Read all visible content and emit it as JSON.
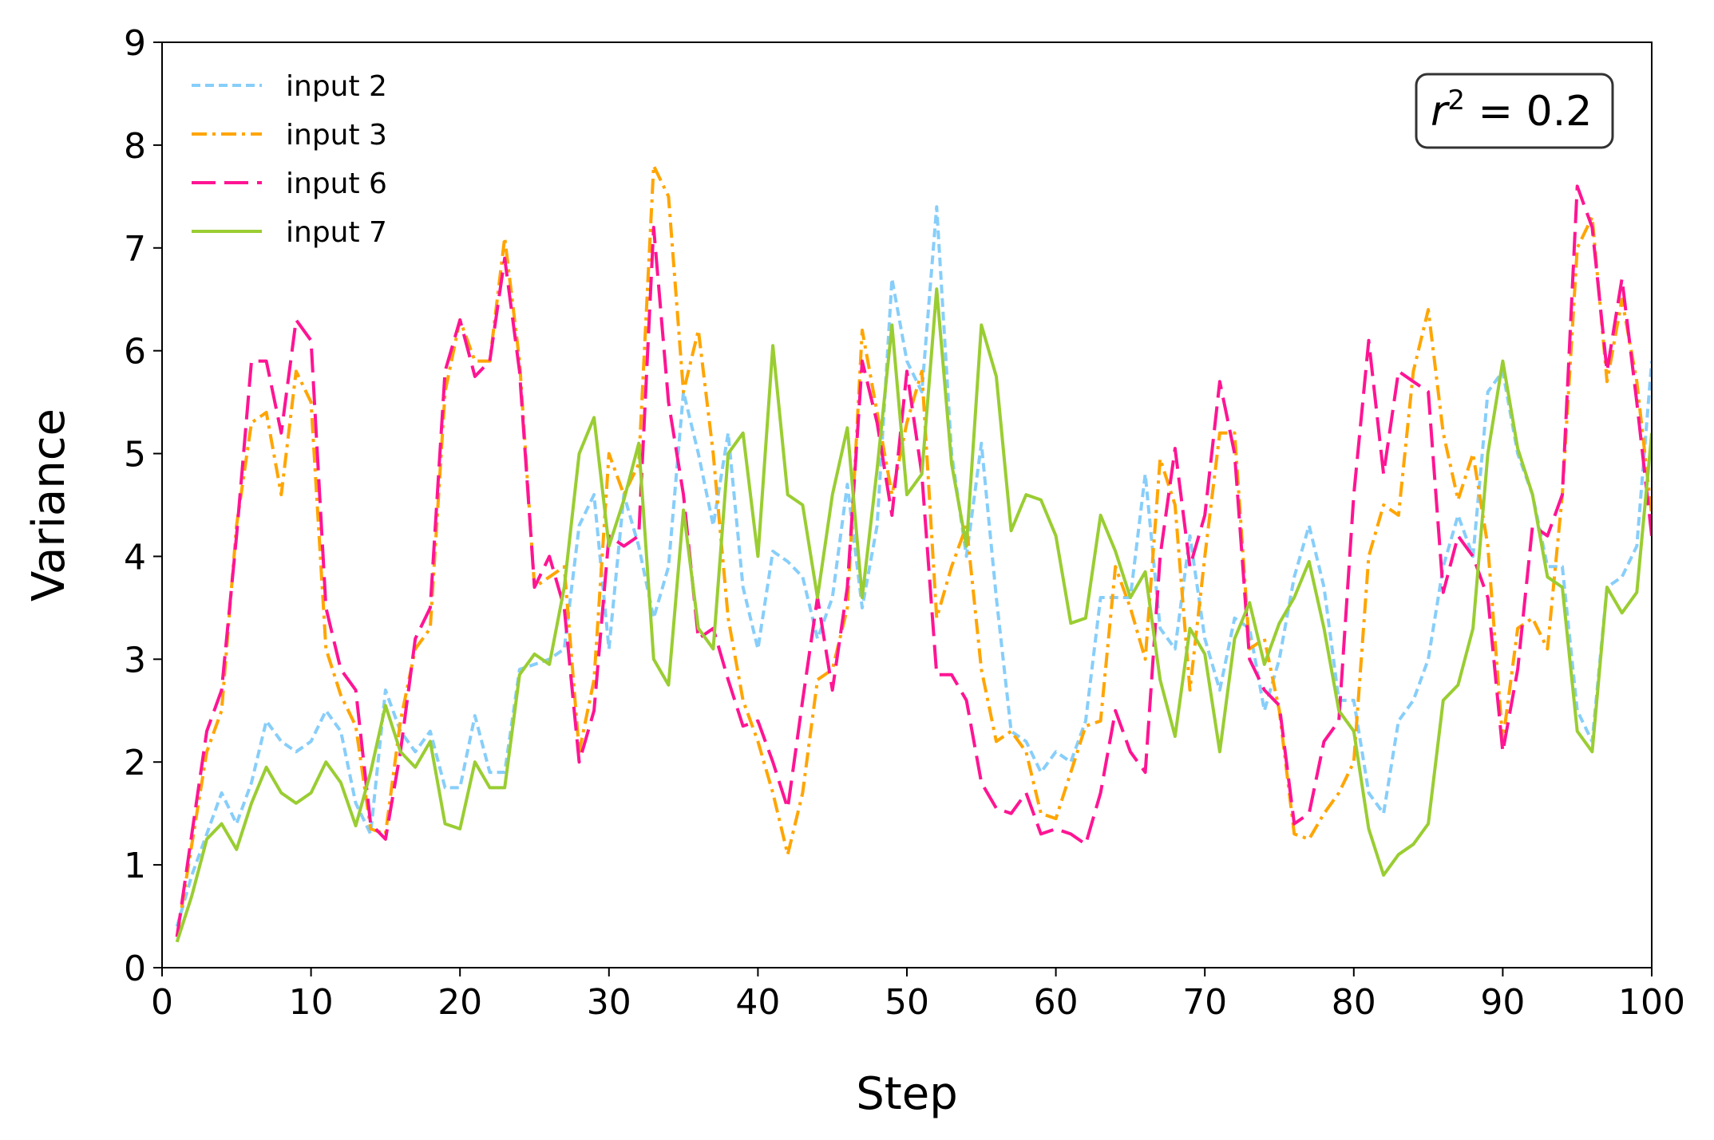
{
  "chart_data": {
    "type": "line",
    "title": "",
    "xlabel": "Step",
    "ylabel": "Variance",
    "xlim": [
      0,
      100
    ],
    "ylim": [
      0,
      9
    ],
    "xticks": [
      0,
      10,
      20,
      30,
      40,
      50,
      60,
      70,
      80,
      90,
      100
    ],
    "yticks": [
      0,
      1,
      2,
      3,
      4,
      5,
      6,
      7,
      8,
      9
    ],
    "legend_position": "top-left",
    "annotation": {
      "base": "r",
      "exponent": "2",
      "rest": " = 0.2",
      "position": "top-right"
    },
    "x": [
      1,
      2,
      3,
      4,
      5,
      6,
      7,
      8,
      9,
      10,
      11,
      12,
      13,
      14,
      15,
      16,
      17,
      18,
      19,
      20,
      21,
      22,
      23,
      24,
      25,
      26,
      27,
      28,
      29,
      30,
      31,
      32,
      33,
      34,
      35,
      36,
      37,
      38,
      39,
      40,
      41,
      42,
      43,
      44,
      45,
      46,
      47,
      48,
      49,
      50,
      51,
      52,
      53,
      54,
      55,
      56,
      57,
      58,
      59,
      60,
      61,
      62,
      63,
      64,
      65,
      66,
      67,
      68,
      69,
      70,
      71,
      72,
      73,
      74,
      75,
      76,
      77,
      78,
      79,
      80,
      81,
      82,
      83,
      84,
      85,
      86,
      87,
      88,
      89,
      90,
      91,
      92,
      93,
      94,
      95,
      96,
      97,
      98,
      99,
      100
    ],
    "series": [
      {
        "name": "input 2",
        "color": "#87CEFA",
        "dash": "short-dash",
        "values": [
          0.4,
          0.9,
          1.3,
          1.7,
          1.4,
          1.8,
          2.4,
          2.2,
          2.1,
          2.2,
          2.5,
          2.3,
          1.6,
          1.3,
          2.7,
          2.3,
          2.1,
          2.3,
          1.75,
          1.75,
          2.45,
          1.9,
          1.9,
          2.9,
          2.95,
          3.0,
          3.1,
          4.3,
          4.6,
          3.1,
          4.6,
          4.1,
          3.4,
          3.9,
          5.6,
          5.0,
          4.3,
          5.2,
          3.7,
          3.1,
          4.05,
          3.95,
          3.8,
          3.2,
          3.6,
          4.7,
          3.5,
          4.3,
          6.7,
          5.9,
          5.6,
          7.4,
          5.0,
          4.0,
          5.1,
          3.6,
          2.3,
          2.2,
          1.9,
          2.1,
          2.0,
          2.4,
          3.6,
          3.6,
          3.6,
          4.8,
          3.3,
          3.1,
          4.2,
          3.2,
          2.7,
          3.4,
          3.3,
          2.5,
          3.0,
          3.8,
          4.3,
          3.7,
          2.6,
          2.6,
          1.7,
          1.5,
          2.4,
          2.6,
          3.0,
          3.9,
          4.4,
          4.0,
          5.6,
          5.8,
          5.0,
          4.6,
          3.9,
          3.9,
          2.5,
          2.2,
          3.7,
          3.8,
          4.1,
          5.9
        ]
      },
      {
        "name": "input 3",
        "color": "#FFA500",
        "dash": "dash-dot",
        "values": [
          0.3,
          1.2,
          2.1,
          2.5,
          4.3,
          5.3,
          5.4,
          4.6,
          5.8,
          5.5,
          3.1,
          2.65,
          2.35,
          1.35,
          1.3,
          2.4,
          3.1,
          3.3,
          5.6,
          6.3,
          5.9,
          5.9,
          7.1,
          5.9,
          3.7,
          3.8,
          3.9,
          2.1,
          2.8,
          5.0,
          4.6,
          4.9,
          7.8,
          7.5,
          5.6,
          6.2,
          5.0,
          3.4,
          2.6,
          2.2,
          1.7,
          1.1,
          1.7,
          2.8,
          2.9,
          3.5,
          6.2,
          5.4,
          4.6,
          5.3,
          5.8,
          3.4,
          3.9,
          4.3,
          2.9,
          2.2,
          2.3,
          2.1,
          1.5,
          1.45,
          1.9,
          2.35,
          2.4,
          3.9,
          3.5,
          3.0,
          4.95,
          4.5,
          2.7,
          4.0,
          5.2,
          5.2,
          3.1,
          3.2,
          2.5,
          1.3,
          1.25,
          1.5,
          1.7,
          2.0,
          4.0,
          4.5,
          4.4,
          5.8,
          6.4,
          5.2,
          4.55,
          5.0,
          4.1,
          2.2,
          3.3,
          3.4,
          3.1,
          4.6,
          7.0,
          7.3,
          5.7,
          6.5,
          5.7,
          4.4
        ]
      },
      {
        "name": "input 6",
        "color": "#FF1493",
        "dash": "long-dash",
        "values": [
          0.3,
          1.3,
          2.3,
          2.7,
          4.2,
          5.9,
          5.9,
          5.2,
          6.3,
          6.1,
          3.5,
          2.9,
          2.7,
          1.4,
          1.25,
          2.1,
          3.2,
          3.5,
          5.8,
          6.3,
          5.75,
          5.9,
          6.9,
          5.8,
          3.7,
          4.0,
          3.5,
          2.0,
          2.5,
          4.2,
          4.1,
          4.2,
          7.2,
          5.5,
          4.6,
          3.2,
          3.3,
          2.8,
          2.35,
          2.4,
          2.0,
          1.55,
          2.6,
          3.6,
          2.7,
          3.7,
          5.9,
          5.3,
          4.4,
          5.8,
          4.8,
          2.85,
          2.85,
          2.6,
          1.8,
          1.55,
          1.5,
          1.7,
          1.3,
          1.35,
          1.3,
          1.2,
          1.7,
          2.5,
          2.1,
          1.9,
          4.0,
          5.05,
          3.9,
          4.4,
          5.7,
          5.0,
          3.0,
          2.7,
          2.55,
          1.4,
          1.5,
          2.2,
          2.4,
          4.6,
          6.1,
          4.8,
          5.8,
          5.7,
          5.6,
          3.65,
          4.2,
          4.0,
          3.6,
          2.1,
          2.9,
          4.3,
          4.2,
          4.6,
          7.6,
          7.2,
          5.8,
          6.7,
          5.5,
          4.2
        ]
      },
      {
        "name": "input 7",
        "color": "#9ACD32",
        "dash": "solid",
        "values": [
          0.25,
          0.7,
          1.25,
          1.4,
          1.15,
          1.6,
          1.95,
          1.7,
          1.6,
          1.7,
          2.0,
          1.8,
          1.38,
          1.9,
          2.55,
          2.1,
          1.95,
          2.2,
          1.4,
          1.35,
          2.0,
          1.75,
          1.75,
          2.85,
          3.05,
          2.95,
          3.7,
          5.0,
          5.35,
          4.1,
          4.55,
          5.1,
          3.0,
          2.75,
          4.45,
          3.3,
          3.1,
          5.0,
          5.2,
          4.0,
          6.05,
          4.6,
          4.5,
          3.6,
          4.6,
          5.25,
          3.6,
          4.85,
          6.25,
          4.6,
          4.8,
          6.6,
          4.9,
          4.1,
          6.25,
          5.75,
          4.25,
          4.6,
          4.55,
          4.2,
          3.35,
          3.4,
          4.4,
          4.05,
          3.6,
          3.85,
          2.8,
          2.25,
          3.3,
          3.05,
          2.1,
          3.2,
          3.55,
          2.95,
          3.35,
          3.6,
          3.95,
          3.3,
          2.5,
          2.3,
          1.35,
          0.9,
          1.1,
          1.2,
          1.4,
          2.6,
          2.75,
          3.3,
          5.0,
          5.9,
          5.05,
          4.6,
          3.8,
          3.7,
          2.3,
          2.1,
          3.7,
          3.45,
          3.65,
          5.2
        ]
      }
    ]
  }
}
